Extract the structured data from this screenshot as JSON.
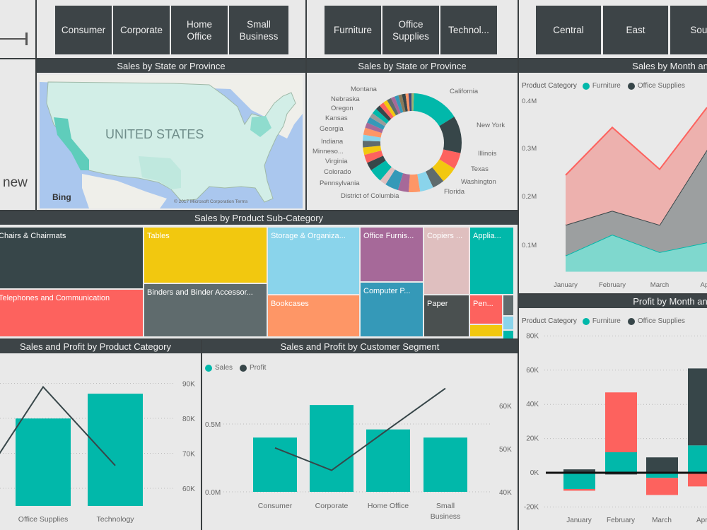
{
  "colors": {
    "teal": "#01b8aa",
    "dark": "#374649",
    "red": "#fd625e",
    "yellow": "#f2c80f",
    "gray": "#5f6b6d",
    "lightblue": "#8ad4eb",
    "orange": "#fe9666",
    "purple": "#a66999",
    "blue": "#3599b8",
    "pink": "#dfbfbf",
    "header": "#3d4447"
  },
  "left_panel": {
    "text": "new"
  },
  "segment_slicer": {
    "items": [
      "Consumer",
      "Corporate",
      "Home Office",
      "Small Business"
    ]
  },
  "category_slicer": {
    "items": [
      "Furniture",
      "Office Supplies",
      "Technol..."
    ]
  },
  "region_slicer": {
    "items": [
      "Central",
      "East",
      "South"
    ]
  },
  "map": {
    "title": "Sales by State or Province",
    "country_label": "UNITED STATES",
    "provider": "Bing",
    "copyright": "© 2017 Microsoft Corporation Terms"
  },
  "donut": {
    "title": "Sales by State or Province"
  },
  "treemap": {
    "title": "Sales by Product Sub-Category",
    "items": [
      {
        "label": "Chairs & Chairmats",
        "color": "#374649"
      },
      {
        "label": "Telephones and Communication",
        "color": "#fd625e"
      },
      {
        "label": "Tables",
        "color": "#f2c80f"
      },
      {
        "label": "Binders and Binder Accessor...",
        "color": "#5f6b6d"
      },
      {
        "label": "Storage & Organiza...",
        "color": "#8ad4eb"
      },
      {
        "label": "Bookcases",
        "color": "#fe9666"
      },
      {
        "label": "Office Furnis...",
        "color": "#a66999"
      },
      {
        "label": "Computer P...",
        "color": "#3599b8"
      },
      {
        "label": "Copiers ...",
        "color": "#dfbfbf"
      },
      {
        "label": "Paper",
        "color": "#4a5050"
      },
      {
        "label": "Applia...",
        "color": "#01b8aa"
      },
      {
        "label": "Pen...",
        "color": "#fd625e"
      },
      {
        "label": "",
        "color": "#f2c80f"
      },
      {
        "label": "",
        "color": "#5f6b6d"
      },
      {
        "label": "",
        "color": "#8ad4eb"
      },
      {
        "label": "",
        "color": "#01b8aa"
      }
    ]
  },
  "chart_data": [
    {
      "id": "donut",
      "type": "pie",
      "title": "Sales by State or Province",
      "slices": [
        {
          "label": "California",
          "value": 16,
          "color": "#01b8aa"
        },
        {
          "label": "New York",
          "value": 12.5,
          "color": "#374649"
        },
        {
          "label": "Illinois",
          "value": 5.5,
          "color": "#fd625e"
        },
        {
          "label": "Texas",
          "value": 5.5,
          "color": "#f2c80f"
        },
        {
          "label": "Washington",
          "value": 4,
          "color": "#5f6b6d"
        },
        {
          "label": "Florida",
          "value": 4.5,
          "color": "#8ad4eb"
        },
        {
          "label": "",
          "value": 3.8,
          "color": "#fe9666"
        },
        {
          "label": "District of Columbia",
          "value": 3.6,
          "color": "#a66999"
        },
        {
          "label": "",
          "value": 4.5,
          "color": "#3599b8"
        },
        {
          "label": "",
          "value": 2.2,
          "color": "#dfbfbf"
        },
        {
          "label": "Pennsylvania",
          "value": 4.5,
          "color": "#01b8aa"
        },
        {
          "label": "",
          "value": 2.8,
          "color": "#374649"
        },
        {
          "label": "Colorado",
          "value": 2.8,
          "color": "#fd625e"
        },
        {
          "label": "Virginia",
          "value": 2.5,
          "color": "#f2c80f"
        },
        {
          "label": "",
          "value": 2.2,
          "color": "#5f6b6d"
        },
        {
          "label": "Minneso...",
          "value": 2,
          "color": "#8ad4eb"
        },
        {
          "label": "Indiana",
          "value": 2.4,
          "color": "#fe9666"
        },
        {
          "label": "",
          "value": 1.8,
          "color": "#a66999"
        },
        {
          "label": "Georgia",
          "value": 2,
          "color": "#3599b8"
        },
        {
          "label": "",
          "value": 1.6,
          "color": "#9a9a9a"
        },
        {
          "label": "Kansas",
          "value": 1.8,
          "color": "#01b8aa"
        },
        {
          "label": "",
          "value": 1.6,
          "color": "#374649"
        },
        {
          "label": "Oregon",
          "value": 1.6,
          "color": "#fd625e"
        },
        {
          "label": "",
          "value": 1.4,
          "color": "#f2c80f"
        },
        {
          "label": "Nebraska",
          "value": 1.5,
          "color": "#5f6b6d"
        },
        {
          "label": "",
          "value": 1.3,
          "color": "#a66999"
        },
        {
          "label": "",
          "value": 1.3,
          "color": "#3599b8"
        },
        {
          "label": "",
          "value": 1.2,
          "color": "#8a7a5a"
        },
        {
          "label": "Montana",
          "value": 1.2,
          "color": "#374649"
        },
        {
          "label": "",
          "value": 1,
          "color": "#fe9666"
        },
        {
          "label": "",
          "value": 1,
          "color": "#3d4a80"
        },
        {
          "label": "",
          "value": 0.8,
          "color": "#a0b070"
        }
      ]
    },
    {
      "id": "area",
      "type": "area",
      "title": "Sales by Month and Product Category",
      "legend_title": "Product Category",
      "legend_placement": "top-left",
      "categories": [
        "January",
        "February",
        "March",
        "April"
      ],
      "yticks": [
        "0.1M",
        "0.2M",
        "0.3M",
        "0.4M"
      ],
      "ylim": [
        0.05,
        0.42
      ],
      "unit": "M",
      "series": [
        {
          "name": "Furniture",
          "color": "#01b8aa",
          "fill": "#7fd8ce",
          "values": [
            0.083,
            0.126,
            0.09,
            0.11
          ]
        },
        {
          "name": "Office Supplies",
          "color": "#374649",
          "fill": "#9c9fa0",
          "values": [
            0.063,
            0.049,
            0.056,
            0.19
          ]
        },
        {
          "color": "#fd625e",
          "fill": "#edb1ae",
          "values": [
            0.102,
            0.171,
            0.114,
            0.087
          ]
        }
      ]
    },
    {
      "id": "profit",
      "type": "bar",
      "stacked": true,
      "title": "Profit by Month and Product Category",
      "legend_title": "Product Category",
      "legend_placement": "top-left",
      "categories": [
        "January",
        "February",
        "March",
        "April"
      ],
      "yticks": [
        "-20K",
        "0K",
        "20K",
        "40K",
        "60K",
        "80K"
      ],
      "ylim": [
        -20,
        80
      ],
      "unit": "K",
      "series": [
        {
          "name": "Furniture",
          "color": "#01b8aa",
          "values": [
            -9.5,
            12,
            -3,
            16
          ]
        },
        {
          "name": "Office Supplies",
          "color": "#374649",
          "values": [
            2,
            -1,
            9,
            45
          ]
        },
        {
          "color": "#fd625e",
          "values": [
            -1,
            35,
            -10,
            -8
          ]
        }
      ]
    },
    {
      "id": "category",
      "type": "bar+line",
      "title": "Sales and Profit by Product Category",
      "categories": [
        "Office Supplies",
        "Technology"
      ],
      "sales": [
        0.6,
        0.77
      ],
      "sales_ylim": [
        0,
        0.95
      ],
      "profit": [
        89,
        66.5
      ],
      "profit_ylim": [
        55.2,
        92.8
      ],
      "profit_yticks": [
        "60K",
        "70K",
        "80K",
        "90K"
      ]
    },
    {
      "id": "segment",
      "type": "bar+line",
      "title": "Sales and Profit by Customer Segment",
      "legend": [
        {
          "name": "Sales",
          "color": "#01b8aa"
        },
        {
          "name": "Profit",
          "color": "#374649"
        }
      ],
      "categories": [
        "Consumer",
        "Corporate",
        "Home Office",
        "Small Business"
      ],
      "sales": [
        0.4,
        0.64,
        0.46,
        0.4
      ],
      "sales_ylim": [
        0,
        1
      ],
      "sales_yticks": [
        "0.0M",
        "0.5M"
      ],
      "profit": [
        50.2,
        45,
        54.5,
        64
      ],
      "profit_ylim": [
        40,
        60
      ],
      "profit_yticks": [
        "40K",
        "50K",
        "60K"
      ]
    }
  ]
}
